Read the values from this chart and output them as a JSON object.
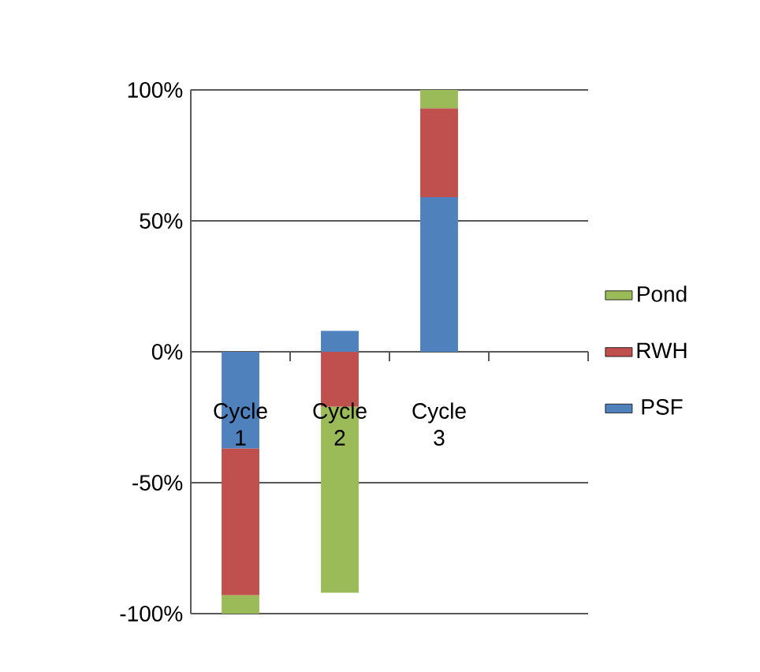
{
  "chart_data": {
    "type": "bar",
    "stacked": true,
    "categories": [
      "Cycle 1",
      "Cycle 2",
      "Cycle 3",
      null
    ],
    "series": [
      {
        "name": "PSF",
        "color": "#4f81bd",
        "values": [
          -37,
          8,
          59,
          null
        ]
      },
      {
        "name": "RWH",
        "color": "#c0504d",
        "values": [
          -56,
          -21,
          34,
          null
        ]
      },
      {
        "name": "Pond",
        "color": "#9bbb59",
        "values": [
          -7,
          -71,
          7,
          null
        ]
      }
    ],
    "ylim": [
      -100,
      100
    ],
    "yticks": [
      {
        "value": -100,
        "label": "-100%"
      },
      {
        "value": -50,
        "label": "-50%"
      },
      {
        "value": 0,
        "label": "0%"
      },
      {
        "value": 50,
        "label": "50%"
      },
      {
        "value": 100,
        "label": "100%"
      }
    ],
    "grid": "y",
    "legend": "right"
  }
}
